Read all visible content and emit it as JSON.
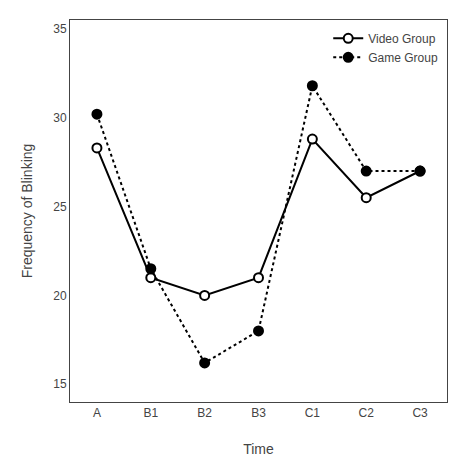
{
  "chart_data": {
    "type": "line",
    "categories": [
      "A",
      "B1",
      "B2",
      "B3",
      "C1",
      "C2",
      "C3"
    ],
    "series": [
      {
        "name": "Video Group",
        "color": "black",
        "marker": "circle-open",
        "line_style": "solid",
        "values": [
          28.3,
          21.0,
          20.0,
          21.0,
          28.8,
          25.5,
          27.0
        ]
      },
      {
        "name": "Game Group",
        "color": "black",
        "marker": "circle",
        "line_style": "dotted",
        "values": [
          30.2,
          21.5,
          16.2,
          18.0,
          31.8,
          27.0,
          27.0
        ]
      }
    ],
    "x_label": "Time",
    "y_label": "Frequency of Blinking",
    "ylim": [
      14,
      35.5
    ],
    "yticks": [
      15,
      20,
      25,
      30,
      35
    ],
    "grid": false,
    "legend": "upper right"
  }
}
